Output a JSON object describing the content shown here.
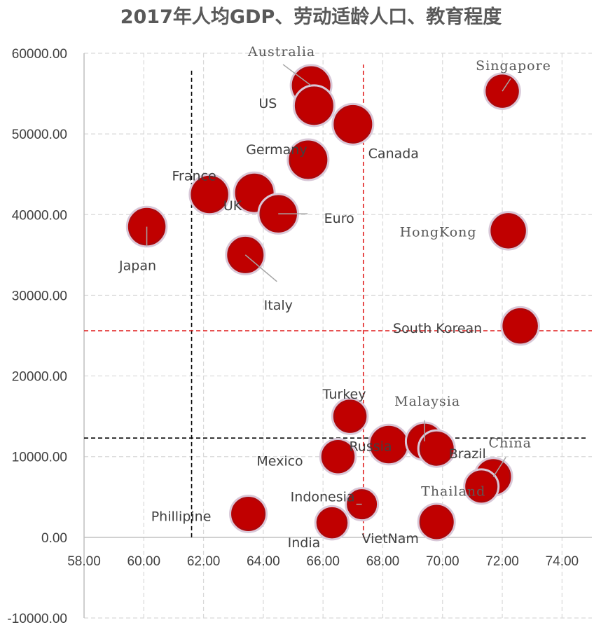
{
  "chart_data": {
    "type": "scatter",
    "title": "2017年人均GDP、劳动适龄人口、教育程度",
    "xlim": [
      58,
      75
    ],
    "ylim": [
      -10000,
      60000
    ],
    "x_ticks": [
      "58.00",
      "60.00",
      "62.00",
      "64.00",
      "66.00",
      "68.00",
      "70.00",
      "72.00",
      "74.00"
    ],
    "y_ticks": [
      "-10000.00",
      "0.00",
      "10000.00",
      "20000.00",
      "30000.00",
      "40000.00",
      "50000.00",
      "60000.00"
    ],
    "grid": true,
    "points": [
      {
        "label": "Australia",
        "x": 65.6,
        "y": 56000,
        "size": 1.0,
        "font": "serif"
      },
      {
        "label": "US",
        "x": 65.7,
        "y": 53500,
        "size": 1.0,
        "font": "sans"
      },
      {
        "label": "Canada",
        "x": 67.0,
        "y": 51200,
        "size": 1.0,
        "font": "sans"
      },
      {
        "label": "Singapore",
        "x": 72.0,
        "y": 55300,
        "size": 0.75,
        "font": "serif"
      },
      {
        "label": "Germany",
        "x": 65.5,
        "y": 46800,
        "size": 1.0,
        "font": "sans"
      },
      {
        "label": "France",
        "x": 62.2,
        "y": 42500,
        "size": 0.95,
        "font": "sans"
      },
      {
        "label": "UK",
        "x": 63.7,
        "y": 42700,
        "size": 1.0,
        "font": "sans"
      },
      {
        "label": "Euro",
        "x": 64.5,
        "y": 40100,
        "size": 0.95,
        "font": "sans"
      },
      {
        "label": "HongKong",
        "x": 72.2,
        "y": 38000,
        "size": 0.85,
        "font": "serif"
      },
      {
        "label": "Japan",
        "x": 60.1,
        "y": 38500,
        "size": 0.95,
        "font": "sans"
      },
      {
        "label": "Italy",
        "x": 63.4,
        "y": 35000,
        "size": 0.9,
        "font": "sans"
      },
      {
        "label": "South Korean",
        "x": 72.6,
        "y": 26200,
        "size": 0.85,
        "font": "sans"
      },
      {
        "label": "Turkey",
        "x": 66.9,
        "y": 15000,
        "size": 0.75,
        "font": "sans"
      },
      {
        "label": "Malaysia",
        "x": 69.4,
        "y": 11900,
        "size": 0.85,
        "font": "serif"
      },
      {
        "label": "Russia",
        "x": 68.2,
        "y": 11500,
        "size": 0.95,
        "font": "sans"
      },
      {
        "label": "Brazil",
        "x": 69.8,
        "y": 11000,
        "size": 0.8,
        "font": "sans"
      },
      {
        "label": "China",
        "x": 71.7,
        "y": 7500,
        "size": 0.85,
        "font": "serif"
      },
      {
        "label": "Thailand",
        "x": 71.3,
        "y": 6300,
        "size": 0.7,
        "font": "serif"
      },
      {
        "label": "Mexico",
        "x": 66.5,
        "y": 10000,
        "size": 0.75,
        "font": "sans"
      },
      {
        "label": "Indonesia",
        "x": 67.3,
        "y": 4100,
        "size": 0.6,
        "font": "sans"
      },
      {
        "label": "Phillipine",
        "x": 63.5,
        "y": 2900,
        "size": 0.8,
        "font": "sans"
      },
      {
        "label": "India",
        "x": 66.3,
        "y": 1800,
        "size": 0.65,
        "font": "sans"
      },
      {
        "label": "VietNam",
        "x": 69.8,
        "y": 1900,
        "size": 0.8,
        "font": "sans"
      }
    ],
    "reference_lines": [
      {
        "orientation": "vertical",
        "x": 61.6,
        "y_from": 0,
        "y_to": 58000,
        "color": "#000000"
      },
      {
        "orientation": "vertical",
        "x": 67.35,
        "y_from": 0,
        "y_to": 58600,
        "color": "#e02020"
      },
      {
        "orientation": "horizontal",
        "y": 25600,
        "x_from": 58,
        "x_to": 75,
        "color": "#e02020"
      },
      {
        "orientation": "horizontal",
        "y": 12300,
        "x_from": 58,
        "x_to": 74.8,
        "color": "#000000"
      }
    ],
    "colors": {
      "bubble": "#c00000",
      "bubble_ring": "#d8c8d8"
    }
  }
}
